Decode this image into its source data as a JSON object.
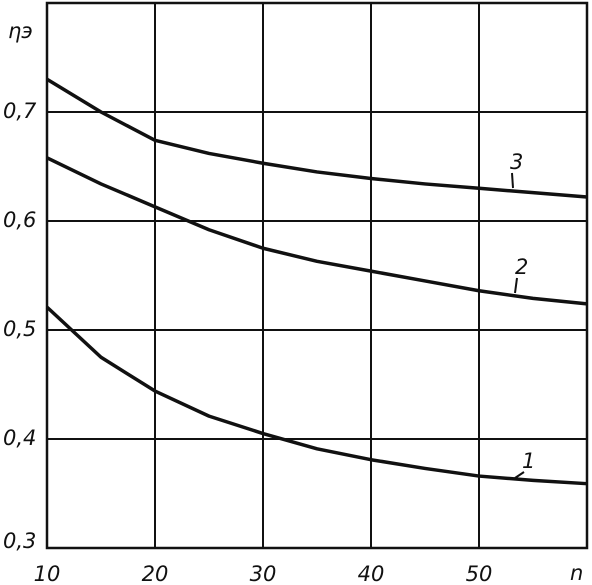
{
  "chart_data": {
    "type": "line",
    "x_label": "n",
    "y_label": "ηэ",
    "x": [
      10,
      15,
      20,
      25,
      30,
      35,
      40,
      45,
      50,
      55,
      60
    ],
    "series": [
      {
        "name": "1",
        "color": "#111111",
        "values": [
          0.521,
          0.475,
          0.444,
          0.421,
          0.405,
          0.391,
          0.381,
          0.373,
          0.366,
          0.362,
          0.359
        ]
      },
      {
        "name": "2",
        "color": "#111111",
        "values": [
          0.658,
          0.634,
          0.613,
          0.592,
          0.575,
          0.563,
          0.554,
          0.545,
          0.536,
          0.529,
          0.524
        ]
      },
      {
        "name": "3",
        "color": "#111111",
        "values": [
          0.73,
          0.7,
          0.674,
          0.662,
          0.653,
          0.645,
          0.639,
          0.634,
          0.63,
          0.626,
          0.622
        ]
      }
    ],
    "xlim": [
      10,
      60
    ],
    "ylim": [
      0.3,
      0.8
    ],
    "xticks": [
      10,
      20,
      30,
      40,
      50
    ],
    "yticks": [
      {
        "value": 0.3,
        "label": "0,3"
      },
      {
        "value": 0.4,
        "label": "0,4"
      },
      {
        "value": 0.5,
        "label": "0,5"
      },
      {
        "value": 0.6,
        "label": "0,6"
      },
      {
        "value": 0.7,
        "label": "0,7"
      }
    ],
    "grid": true
  }
}
